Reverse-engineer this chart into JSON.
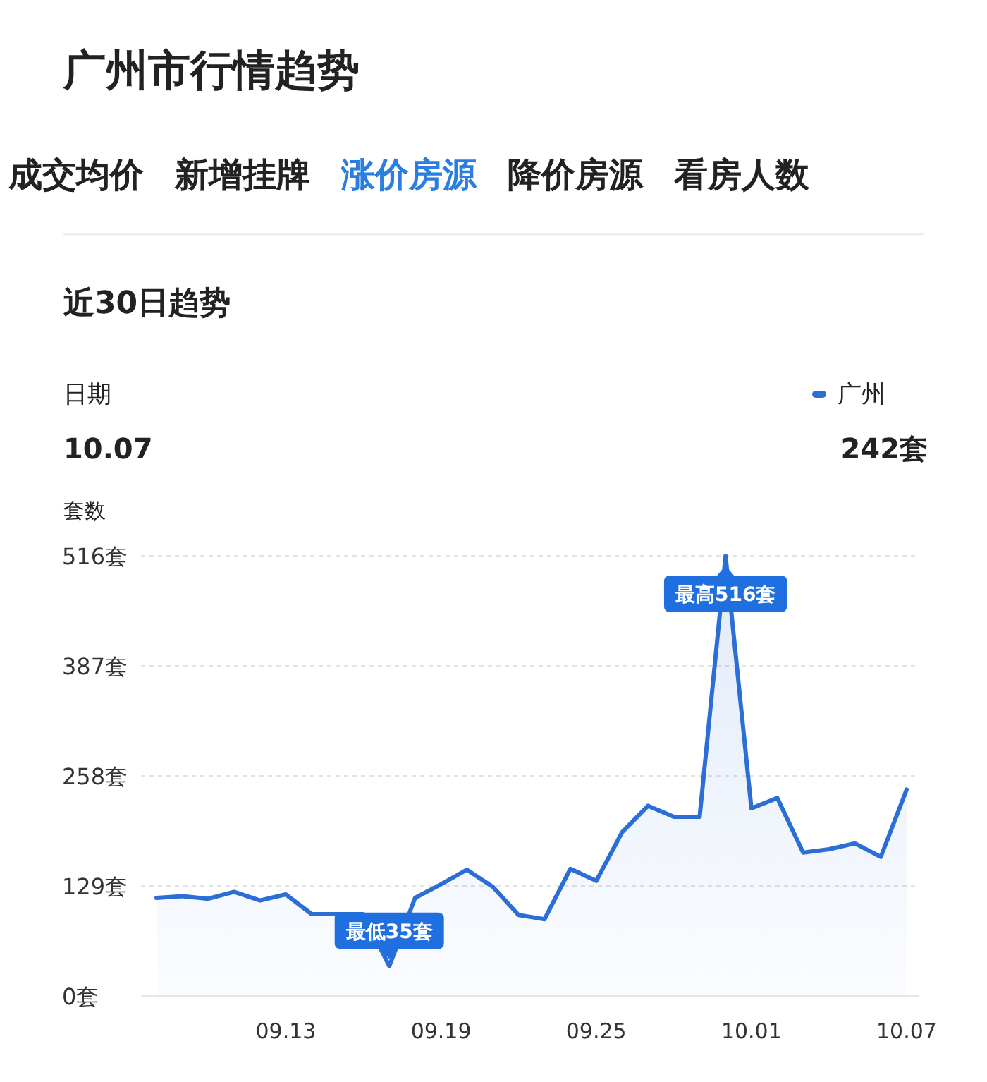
{
  "chart_data": {
    "type": "area",
    "title": "广州市行情趋势",
    "subtitle": "近30日趋势",
    "ylabel": "套数",
    "categories": [
      null,
      null,
      null,
      null,
      null,
      "09.13",
      null,
      null,
      null,
      null,
      null,
      "09.19",
      null,
      null,
      null,
      null,
      null,
      "09.25",
      null,
      null,
      null,
      null,
      null,
      "10.01",
      null,
      null,
      null,
      null,
      null,
      "10.07"
    ],
    "series": [
      {
        "name": "广州",
        "color": "#2b6fd6",
        "values": [
          115,
          117,
          114,
          122,
          112,
          119,
          96,
          96,
          96,
          35,
          115,
          131,
          148,
          128,
          95,
          90,
          149,
          135,
          192,
          223,
          210,
          210,
          516,
          220,
          232,
          168,
          172,
          179,
          163,
          242
        ]
      }
    ],
    "ylim": [
      0,
      516
    ],
    "yticks": [
      {
        "value": 0,
        "label": "0套"
      },
      {
        "value": 129,
        "label": "129套"
      },
      {
        "value": 258,
        "label": "258套"
      },
      {
        "value": 387,
        "label": "387套"
      },
      {
        "value": 516,
        "label": "516套"
      }
    ],
    "grid": "y",
    "legend": "top right",
    "annotations": [
      "成交均价",
      "新增挂牌",
      "涨价房源",
      "降价房源",
      "看房人数",
      "日期",
      "10.07",
      "242套",
      {
        "text": "最高516套",
        "y": 516
      },
      {
        "text": "最低35套",
        "y": 35
      }
    ]
  }
}
